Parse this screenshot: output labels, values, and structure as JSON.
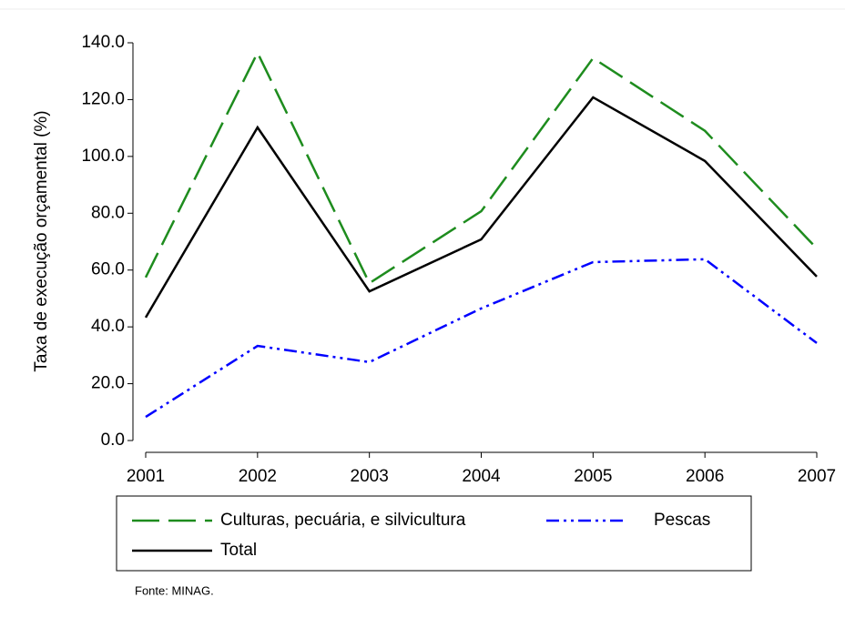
{
  "chart_data": {
    "type": "line",
    "y_label": "Taxa de execução orçamental (%)",
    "source": "Fonte: MINAG.",
    "categories": [
      "2001",
      "2002",
      "2003",
      "2004",
      "2005",
      "2006",
      "2007"
    ],
    "series": [
      {
        "name": "Culturas, pecuária, e silvicultura",
        "color": "#1e8c1e",
        "linestyle": "dashed",
        "values": [
          57.4,
          136.5,
          55.4,
          80.7,
          134.6,
          109.0,
          67.6
        ]
      },
      {
        "name": "Pescas",
        "color": "#0000ff",
        "linestyle": "dashdotdot",
        "values": [
          8.3,
          33.3,
          27.6,
          46.5,
          62.8,
          63.8,
          34.3
        ]
      },
      {
        "name": "Total",
        "color": "#000000",
        "linestyle": "solid",
        "values": [
          43.3,
          110.2,
          52.5,
          70.8,
          120.8,
          98.4,
          57.7
        ]
      }
    ],
    "ylim": [
      0,
      140
    ],
    "yticks": [
      {
        "value": 0,
        "label": "0.0"
      },
      {
        "value": 20,
        "label": "20.0"
      },
      {
        "value": 40,
        "label": "40.0"
      },
      {
        "value": 60,
        "label": "60.0"
      },
      {
        "value": 80,
        "label": "80.0"
      },
      {
        "value": 100,
        "label": "100.0"
      },
      {
        "value": 120,
        "label": "120.0"
      },
      {
        "value": 140,
        "label": "140.0"
      }
    ],
    "grid": false,
    "legend": "bottom"
  }
}
